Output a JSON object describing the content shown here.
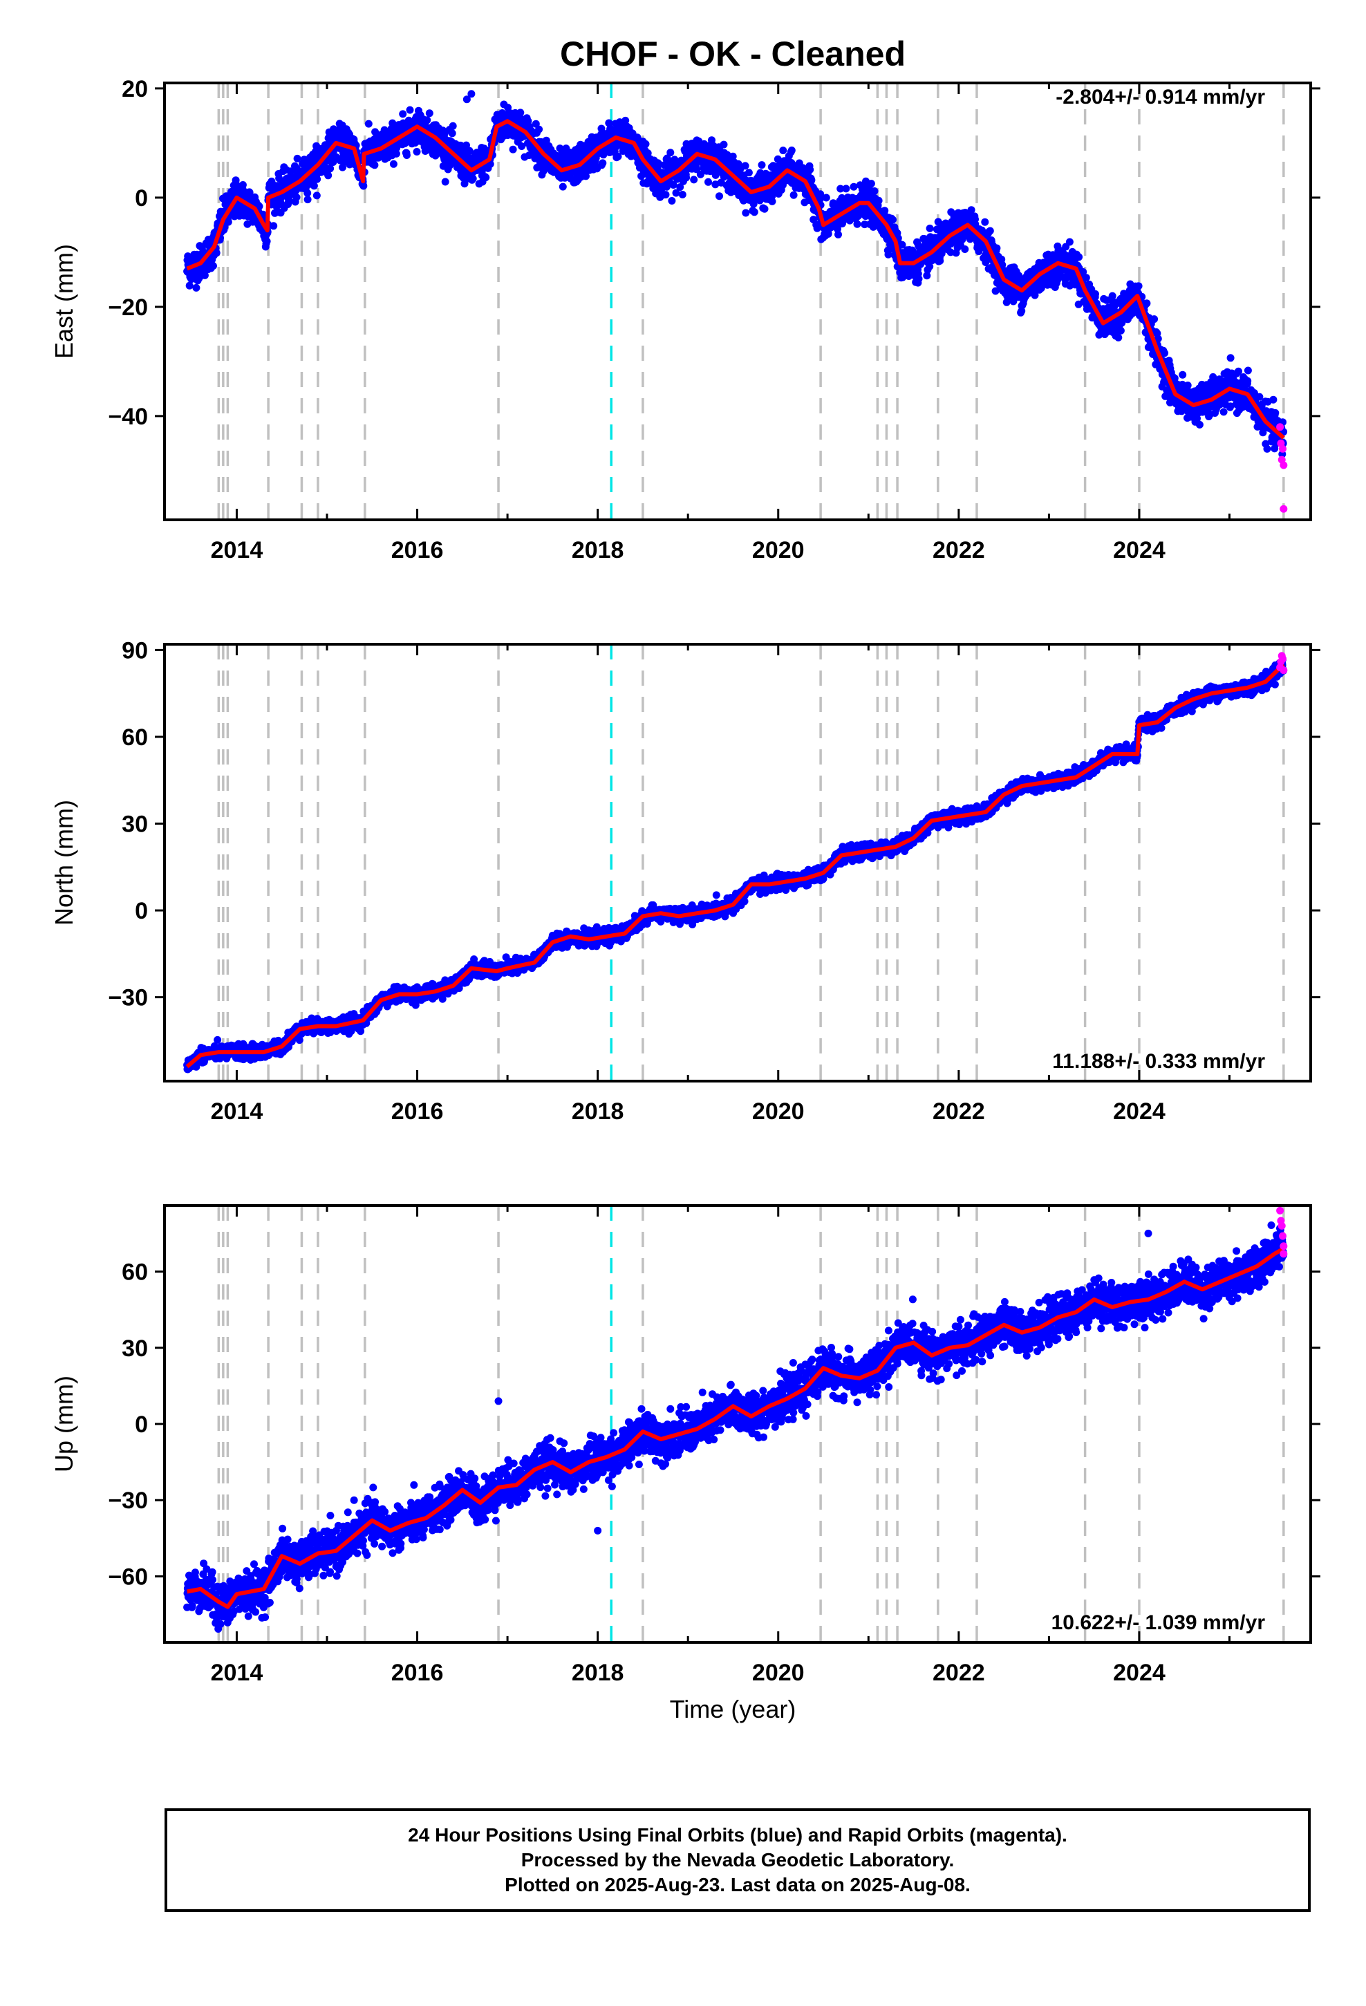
{
  "title": "CHOF  - OK - Cleaned",
  "xlabel": "Time (year)",
  "footer": {
    "line1": "24 Hour Positions Using Final Orbits (blue) and Rapid Orbits (magenta).",
    "line2": "Processed by the Nevada Geodetic Laboratory.",
    "line3": "Plotted on 2025-Aug-23. Last data on 2025-Aug-08."
  },
  "colors": {
    "final_orbits": "#0000ff",
    "rapid_orbits": "#ff00ff",
    "model_fit": "#ff0000",
    "equipment_change_line": "#c0c0c0",
    "earthquake_line": "#00e5e5"
  },
  "chart_data": [
    {
      "type": "scatter",
      "component": "east",
      "ylabel": "East (mm)",
      "rate_label": "-2.804+/- 0.914 mm/yr",
      "xlim": [
        2013.2,
        2025.9
      ],
      "ylim": [
        -59,
        21
      ],
      "x_ticks": [
        2014,
        2016,
        2018,
        2020,
        2022,
        2024
      ],
      "y_ticks": [
        20,
        0,
        -20,
        -40
      ],
      "grid": false,
      "model": {
        "x": [
          2013.45,
          2013.6,
          2013.75,
          2013.85,
          2014.0,
          2014.2,
          2014.3,
          2014.34,
          2014.35,
          2014.5,
          2014.7,
          2014.9,
          2015.1,
          2015.3,
          2015.4,
          2015.41,
          2015.6,
          2015.8,
          2016.0,
          2016.2,
          2016.4,
          2016.6,
          2016.8,
          2016.88,
          2017.0,
          2017.2,
          2017.4,
          2017.6,
          2017.8,
          2018.0,
          2018.2,
          2018.4,
          2018.5,
          2018.7,
          2018.9,
          2019.1,
          2019.3,
          2019.5,
          2019.7,
          2019.9,
          2020.1,
          2020.3,
          2020.45,
          2020.5,
          2020.7,
          2020.9,
          2021.0,
          2021.1,
          2021.2,
          2021.3,
          2021.35,
          2021.5,
          2021.7,
          2021.9,
          2022.1,
          2022.3,
          2022.5,
          2022.7,
          2022.9,
          2023.1,
          2023.3,
          2023.4,
          2023.6,
          2023.8,
          2023.98,
          2024.2,
          2024.4,
          2024.6,
          2024.8,
          2025.0,
          2025.2,
          2025.4,
          2025.6
        ],
        "y": [
          -13,
          -12,
          -9,
          -4,
          0,
          -2,
          -5,
          -6,
          0,
          1,
          3,
          6,
          10,
          9,
          3,
          8,
          9,
          11,
          13,
          11,
          8,
          5,
          7,
          13,
          14,
          12,
          8,
          5,
          6,
          9,
          11,
          10,
          7,
          3,
          5,
          8,
          7,
          4,
          1,
          2,
          5,
          3,
          -2,
          -5,
          -3,
          -1,
          -1,
          -3,
          -5,
          -8,
          -12,
          -12,
          -10,
          -7,
          -5,
          -8,
          -15,
          -17,
          -14,
          -12,
          -13,
          -17,
          -23,
          -21,
          -18,
          -28,
          -36,
          -38,
          -37,
          -35,
          -36,
          -41,
          -44
        ]
      },
      "noise_std": 1.6,
      "outliers": {
        "x": [
          2016.55,
          2016.6
        ],
        "y": [
          18,
          19
        ]
      },
      "rapid": {
        "x": [
          2025.56,
          2025.57,
          2025.58,
          2025.59,
          2025.6,
          2025.6
        ],
        "y": [
          -42,
          -45,
          -48,
          -46,
          -49,
          -57
        ]
      }
    },
    {
      "type": "scatter",
      "component": "north",
      "ylabel": "North (mm)",
      "rate_label": "11.188+/- 0.333 mm/yr",
      "xlim": [
        2013.2,
        2025.9
      ],
      "ylim": [
        -59,
        92
      ],
      "x_ticks": [
        2014,
        2016,
        2018,
        2020,
        2022,
        2024
      ],
      "y_ticks": [
        90,
        60,
        30,
        0,
        -30
      ],
      "grid": false,
      "model": {
        "x": [
          2013.45,
          2013.6,
          2013.8,
          2014.0,
          2014.3,
          2014.5,
          2014.7,
          2014.9,
          2015.1,
          2015.4,
          2015.6,
          2015.8,
          2016.0,
          2016.2,
          2016.4,
          2016.6,
          2016.88,
          2017.0,
          2017.3,
          2017.5,
          2017.7,
          2017.9,
          2018.1,
          2018.3,
          2018.5,
          2018.7,
          2018.9,
          2019.1,
          2019.3,
          2019.5,
          2019.7,
          2019.9,
          2020.1,
          2020.3,
          2020.5,
          2020.7,
          2020.9,
          2021.1,
          2021.3,
          2021.5,
          2021.7,
          2021.9,
          2022.1,
          2022.3,
          2022.5,
          2022.7,
          2022.9,
          2023.1,
          2023.3,
          2023.5,
          2023.7,
          2023.98,
          2024.0,
          2024.2,
          2024.4,
          2024.6,
          2024.8,
          2025.0,
          2025.2,
          2025.4,
          2025.6
        ],
        "y": [
          -54,
          -50,
          -49,
          -49,
          -49,
          -47,
          -41,
          -40,
          -40,
          -38,
          -31,
          -29,
          -29,
          -28,
          -26,
          -20,
          -21,
          -20,
          -18,
          -11,
          -9,
          -10,
          -9,
          -8,
          -2,
          -1,
          -2,
          -1,
          0,
          2,
          9,
          9,
          10,
          11,
          13,
          19,
          20,
          21,
          22,
          25,
          31,
          32,
          33,
          34,
          40,
          43,
          44,
          45,
          46,
          50,
          54,
          54,
          64,
          65,
          70,
          73,
          75,
          76,
          77,
          79,
          85
        ]
      },
      "noise_std": 1.2,
      "outliers": {
        "x": [],
        "y": []
      },
      "rapid": {
        "x": [
          2025.56,
          2025.57,
          2025.58,
          2025.59,
          2025.6
        ],
        "y": [
          84,
          86,
          88,
          87,
          83
        ]
      }
    },
    {
      "type": "scatter",
      "component": "up",
      "ylabel": "Up (mm)",
      "rate_label": "10.622+/- 1.039 mm/yr",
      "xlim": [
        2013.2,
        2025.9
      ],
      "ylim": [
        -86,
        86
      ],
      "x_ticks": [
        2014,
        2016,
        2018,
        2020,
        2022,
        2024
      ],
      "y_ticks": [
        60,
        30,
        0,
        -30,
        -60
      ],
      "grid": false,
      "model": {
        "x": [
          2013.45,
          2013.6,
          2013.8,
          2013.9,
          2014.0,
          2014.3,
          2014.5,
          2014.7,
          2014.9,
          2015.1,
          2015.3,
          2015.5,
          2015.7,
          2015.9,
          2016.1,
          2016.3,
          2016.5,
          2016.7,
          2016.9,
          2017.1,
          2017.3,
          2017.5,
          2017.7,
          2017.9,
          2018.1,
          2018.3,
          2018.5,
          2018.7,
          2018.9,
          2019.1,
          2019.3,
          2019.5,
          2019.7,
          2019.9,
          2020.1,
          2020.3,
          2020.5,
          2020.7,
          2020.9,
          2021.1,
          2021.3,
          2021.5,
          2021.7,
          2021.9,
          2022.1,
          2022.3,
          2022.5,
          2022.7,
          2022.9,
          2023.1,
          2023.3,
          2023.5,
          2023.7,
          2023.9,
          2024.1,
          2024.3,
          2024.5,
          2024.7,
          2024.9,
          2025.1,
          2025.3,
          2025.5,
          2025.6
        ],
        "y": [
          -66,
          -65,
          -70,
          -72,
          -67,
          -65,
          -52,
          -55,
          -51,
          -50,
          -44,
          -38,
          -42,
          -39,
          -37,
          -32,
          -26,
          -31,
          -25,
          -24,
          -18,
          -15,
          -19,
          -15,
          -13,
          -10,
          -3,
          -6,
          -4,
          -2,
          2,
          7,
          3,
          7,
          10,
          14,
          22,
          19,
          18,
          21,
          30,
          32,
          27,
          30,
          31,
          35,
          39,
          36,
          38,
          42,
          44,
          49,
          46,
          48,
          49,
          52,
          56,
          53,
          56,
          59,
          62,
          67,
          69
        ]
      },
      "noise_std": 4.0,
      "outliers": {
        "x": [
          2015.3,
          2016.9,
          2018.0,
          2024.1
        ],
        "y": [
          -30,
          9,
          -42,
          75
        ]
      },
      "rapid": {
        "x": [
          2025.56,
          2025.57,
          2025.58,
          2025.59,
          2025.6,
          2025.6
        ],
        "y": [
          84,
          80,
          78,
          74,
          70,
          67
        ]
      }
    }
  ],
  "event_lines": {
    "equipment_changes": [
      2013.8,
      2013.85,
      2013.9,
      2014.35,
      2014.72,
      2014.9,
      2015.42,
      2016.9,
      2018.5,
      2020.47,
      2021.1,
      2021.2,
      2021.32,
      2021.77,
      2022.2,
      2023.4,
      2024.0,
      2025.6
    ],
    "earthquakes": [
      2018.15
    ]
  }
}
